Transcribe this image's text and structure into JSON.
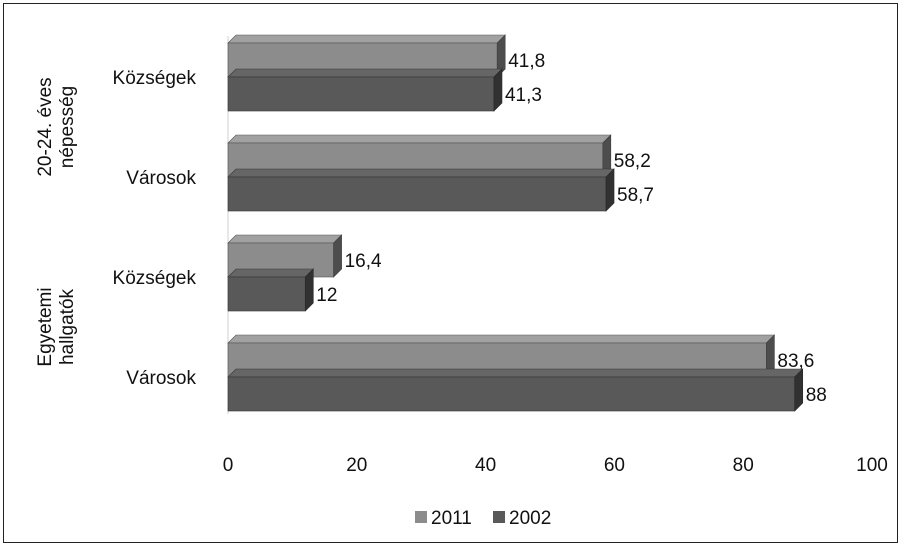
{
  "chart_data": {
    "type": "bar",
    "orientation": "horizontal",
    "style": "3d",
    "groups": [
      {
        "label": "20-24. éves népesség",
        "categories": [
          {
            "label": "Községek",
            "values": {
              "2011": 41.8,
              "2002": 41.3
            },
            "labels": {
              "2011": "41,8",
              "2002": "41,3"
            }
          },
          {
            "label": "Városok",
            "values": {
              "2011": 58.2,
              "2002": 58.7
            },
            "labels": {
              "2011": "58,2",
              "2002": "58,7"
            }
          }
        ]
      },
      {
        "label": "Egyetemi hallgatók",
        "categories": [
          {
            "label": "Községek",
            "values": {
              "2011": 16.4,
              "2002": 12
            },
            "labels": {
              "2011": "16,4",
              "2002": "12"
            }
          },
          {
            "label": "Városok",
            "values": {
              "2011": 83.6,
              "2002": 88
            },
            "labels": {
              "2011": "83,6",
              "2002": "88"
            }
          }
        ]
      }
    ],
    "series": [
      {
        "name": "2011",
        "color": "#8c8c8c"
      },
      {
        "name": "2002",
        "color": "#595959"
      }
    ],
    "xlim": [
      0,
      100
    ],
    "x_ticks": [
      "0",
      "20",
      "40",
      "60",
      "80",
      "100"
    ],
    "legend_position": "bottom",
    "grid": false
  }
}
